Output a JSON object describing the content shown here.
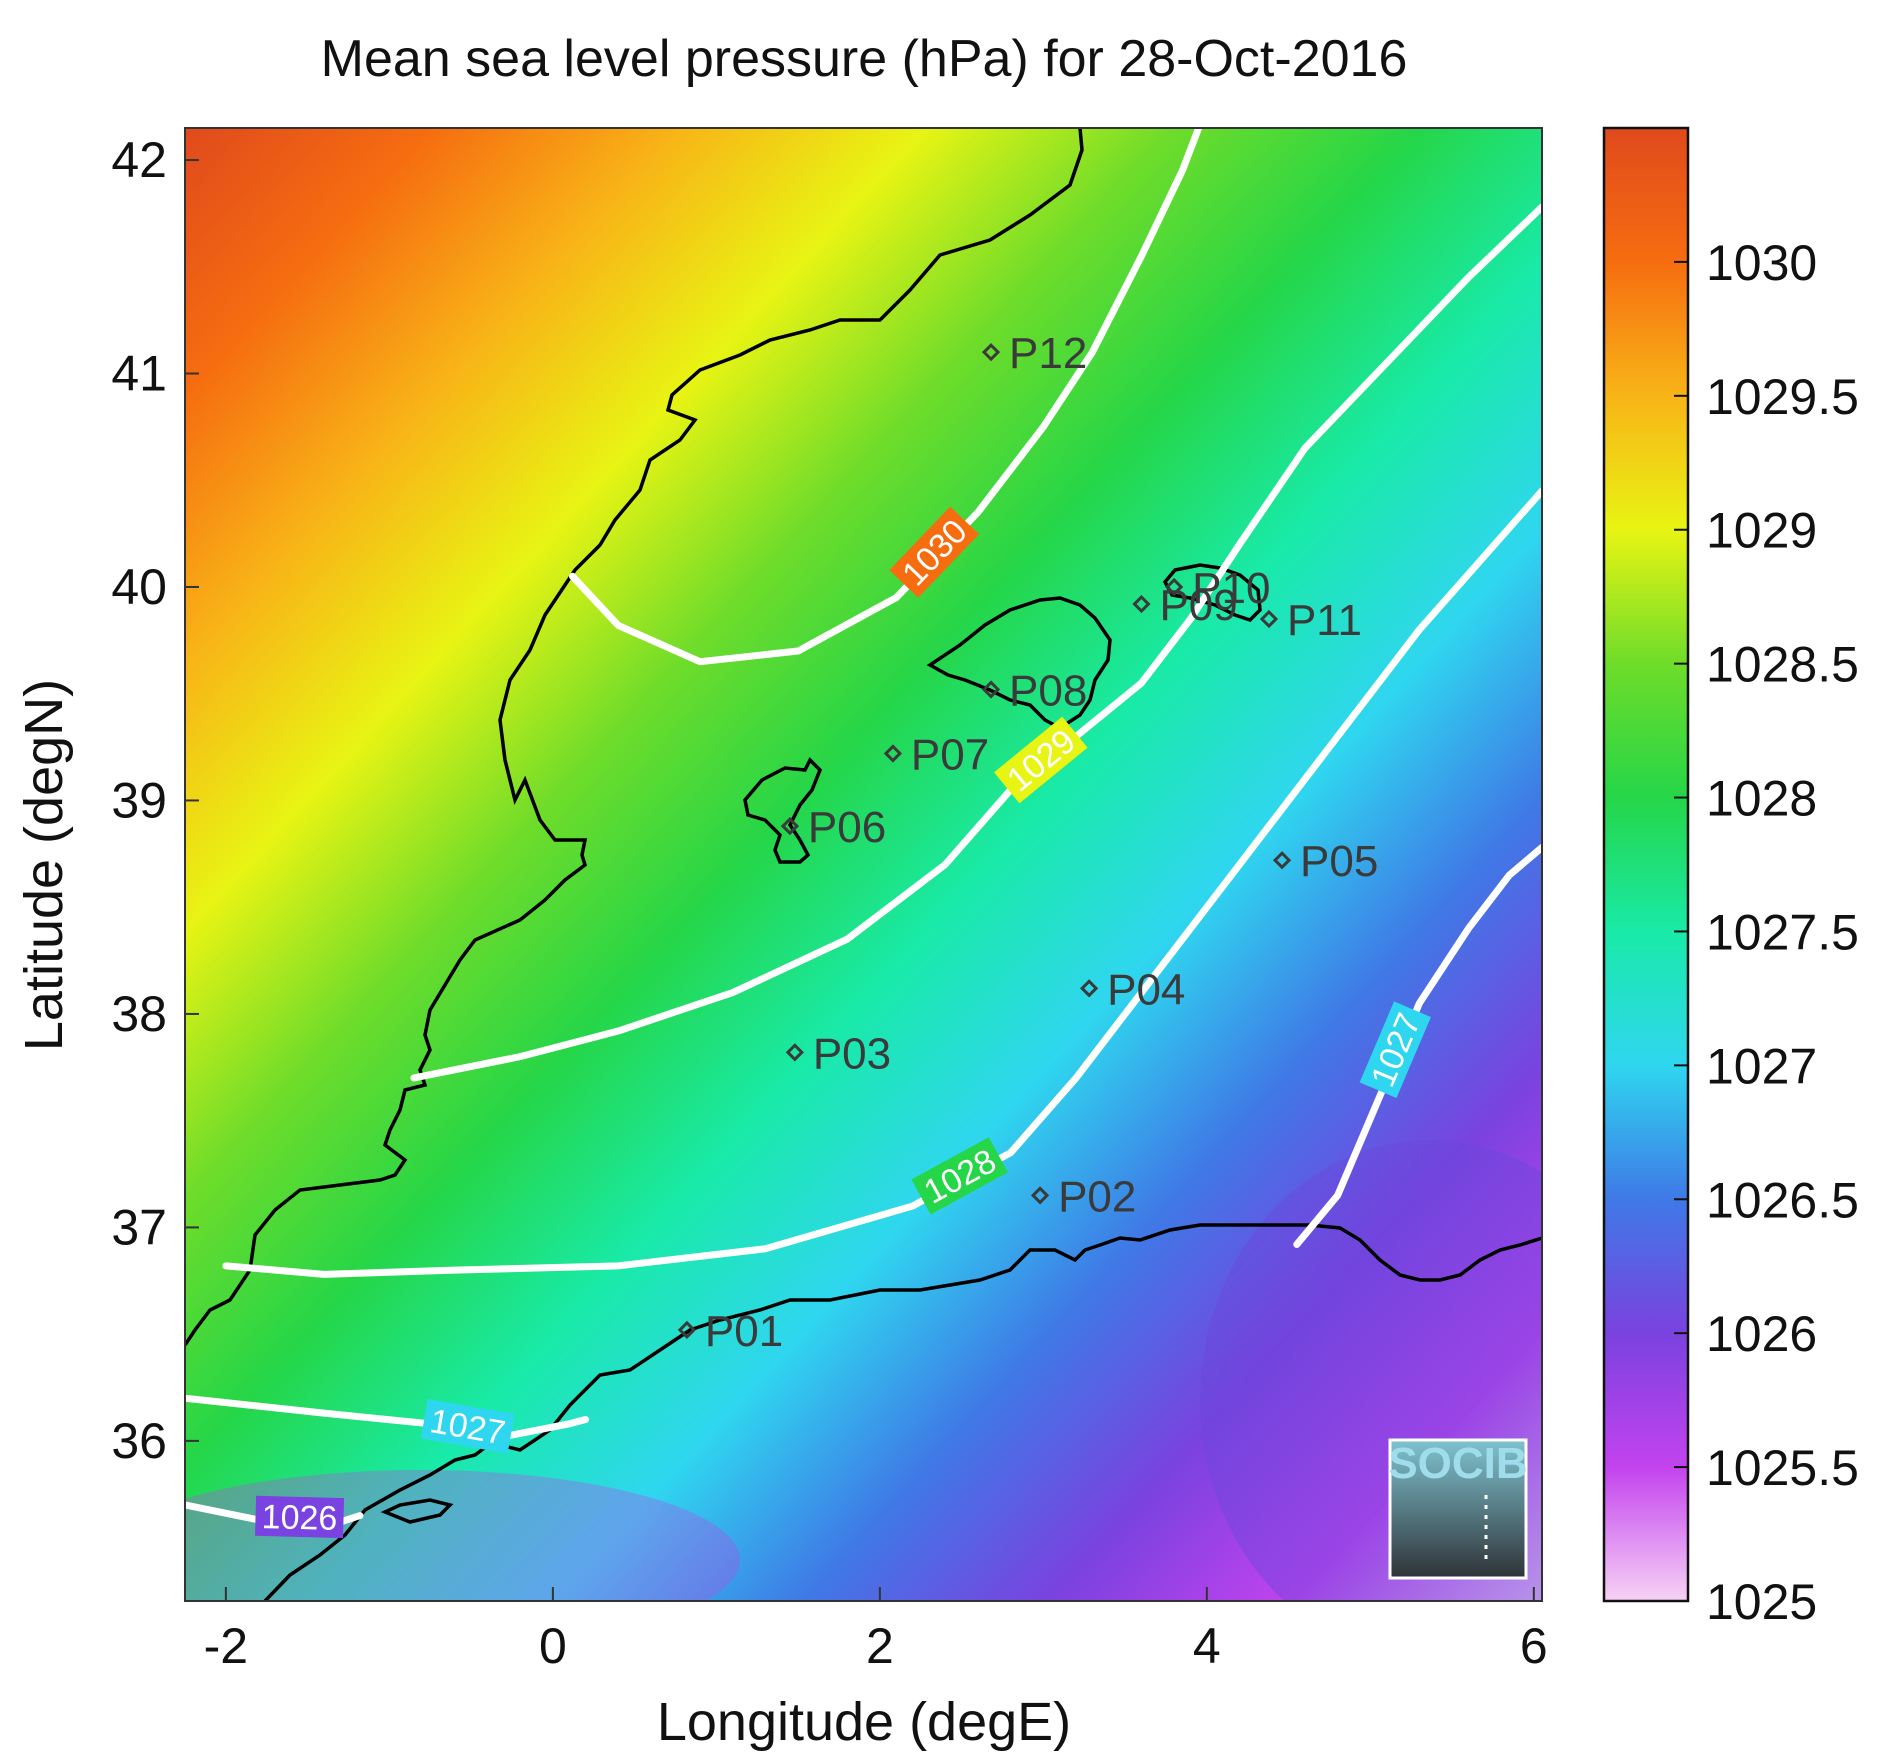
{
  "map": {
    "title": "Mean sea level pressure (hPa) for 28-Oct-2016",
    "xlabel": "Longitude (degE)",
    "ylabel": "Latitude (degN)",
    "lon_range": [
      -2.25,
      6.05
    ],
    "lat_range": [
      35.25,
      42.15
    ],
    "xticks": [
      {
        "value": -2,
        "label": "-2"
      },
      {
        "value": 0,
        "label": "0"
      },
      {
        "value": 2,
        "label": "2"
      },
      {
        "value": 4,
        "label": "4"
      },
      {
        "value": 6,
        "label": "6"
      }
    ],
    "yticks": [
      {
        "value": 36,
        "label": "36"
      },
      {
        "value": 37,
        "label": "37"
      },
      {
        "value": 38,
        "label": "38"
      },
      {
        "value": 39,
        "label": "39"
      },
      {
        "value": 40,
        "label": "40"
      },
      {
        "value": 41,
        "label": "41"
      },
      {
        "value": 42,
        "label": "42"
      }
    ]
  },
  "colorbar": {
    "range": [
      1025,
      1030.5
    ],
    "ticks": [
      {
        "value": 1025,
        "label": "1025"
      },
      {
        "value": 1025.5,
        "label": "1025.5"
      },
      {
        "value": 1026,
        "label": "1026"
      },
      {
        "value": 1026.5,
        "label": "1026.5"
      },
      {
        "value": 1027,
        "label": "1027"
      },
      {
        "value": 1027.5,
        "label": "1027.5"
      },
      {
        "value": 1028,
        "label": "1028"
      },
      {
        "value": 1028.5,
        "label": "1028.5"
      },
      {
        "value": 1029,
        "label": "1029"
      },
      {
        "value": 1029.5,
        "label": "1029.5"
      },
      {
        "value": 1030,
        "label": "1030"
      }
    ],
    "colors": {
      "1025": "#f7d2f5",
      "1025.5": "#c343ee",
      "1026": "#7a42e0",
      "1026.5": "#3f79e6",
      "1027": "#2fd6ef",
      "1027.5": "#19eaa8",
      "1028": "#25d648",
      "1028.5": "#6fdc2a",
      "1029": "#e8f413",
      "1029.5": "#f8b417",
      "1030": "#f66d10",
      "1030.5": "#e04a1c"
    }
  },
  "stations": [
    {
      "name": "P01",
      "lon": 0.82,
      "lat": 36.52
    },
    {
      "name": "P02",
      "lon": 2.98,
      "lat": 37.15
    },
    {
      "name": "P03",
      "lon": 1.48,
      "lat": 37.82
    },
    {
      "name": "P04",
      "lon": 3.28,
      "lat": 38.12
    },
    {
      "name": "P05",
      "lon": 4.46,
      "lat": 38.72
    },
    {
      "name": "P06",
      "lon": 1.45,
      "lat": 38.88
    },
    {
      "name": "P07",
      "lon": 2.08,
      "lat": 39.22
    },
    {
      "name": "P08",
      "lon": 2.68,
      "lat": 39.52
    },
    {
      "name": "P09",
      "lon": 3.6,
      "lat": 39.92
    },
    {
      "name": "P10",
      "lon": 3.8,
      "lat": 40.0
    },
    {
      "name": "P11",
      "lon": 4.38,
      "lat": 39.85
    },
    {
      "name": "P12",
      "lon": 2.68,
      "lat": 41.1
    }
  ],
  "contours": [
    {
      "level": 1030,
      "label": "1030",
      "points": [
        [
          0.12,
          40.05
        ],
        [
          0.4,
          39.82
        ],
        [
          0.9,
          39.65
        ],
        [
          1.5,
          39.7
        ],
        [
          2.1,
          39.95
        ],
        [
          2.6,
          40.35
        ],
        [
          3.0,
          40.75
        ],
        [
          3.3,
          41.1
        ],
        [
          3.6,
          41.55
        ],
        [
          3.85,
          41.95
        ],
        [
          3.95,
          42.15
        ]
      ]
    },
    {
      "level": 1029,
      "label": "1029",
      "points": [
        [
          -0.85,
          37.7
        ],
        [
          -0.2,
          37.8
        ],
        [
          0.4,
          37.92
        ],
        [
          1.1,
          38.1
        ],
        [
          1.8,
          38.35
        ],
        [
          2.4,
          38.7
        ],
        [
          2.8,
          39.05
        ],
        [
          3.2,
          39.3
        ],
        [
          3.6,
          39.55
        ],
        [
          3.9,
          39.85
        ],
        [
          4.2,
          40.2
        ],
        [
          4.6,
          40.65
        ],
        [
          5.1,
          41.05
        ],
        [
          5.6,
          41.45
        ],
        [
          6.05,
          41.78
        ]
      ]
    },
    {
      "level": 1028,
      "label": "1028",
      "points": [
        [
          -2.0,
          36.82
        ],
        [
          -1.4,
          36.78
        ],
        [
          -0.6,
          36.8
        ],
        [
          0.4,
          36.82
        ],
        [
          1.3,
          36.9
        ],
        [
          2.2,
          37.1
        ],
        [
          2.8,
          37.35
        ],
        [
          3.2,
          37.7
        ],
        [
          3.6,
          38.1
        ],
        [
          4.1,
          38.6
        ],
        [
          4.7,
          39.2
        ],
        [
          5.3,
          39.8
        ],
        [
          6.05,
          40.45
        ]
      ]
    },
    {
      "level": 1027,
      "label": "1027",
      "points": [
        [
          -2.25,
          36.2
        ],
        [
          -1.4,
          36.13
        ],
        [
          -0.75,
          36.08
        ],
        [
          -0.3,
          36.02
        ],
        [
          0.1,
          36.08
        ],
        [
          0.2,
          36.1
        ]
      ]
    },
    {
      "level": 1027,
      "label": "1027",
      "points": [
        [
          4.55,
          36.92
        ],
        [
          4.8,
          37.15
        ],
        [
          5.05,
          37.6
        ],
        [
          5.3,
          38.05
        ],
        [
          5.6,
          38.4
        ],
        [
          5.85,
          38.65
        ],
        [
          6.05,
          38.78
        ]
      ]
    },
    {
      "level": 1026,
      "label": "1026",
      "points": [
        [
          -2.25,
          35.7
        ],
        [
          -1.8,
          35.63
        ],
        [
          -1.3,
          35.62
        ],
        [
          -1.18,
          35.65
        ]
      ]
    }
  ]
}
